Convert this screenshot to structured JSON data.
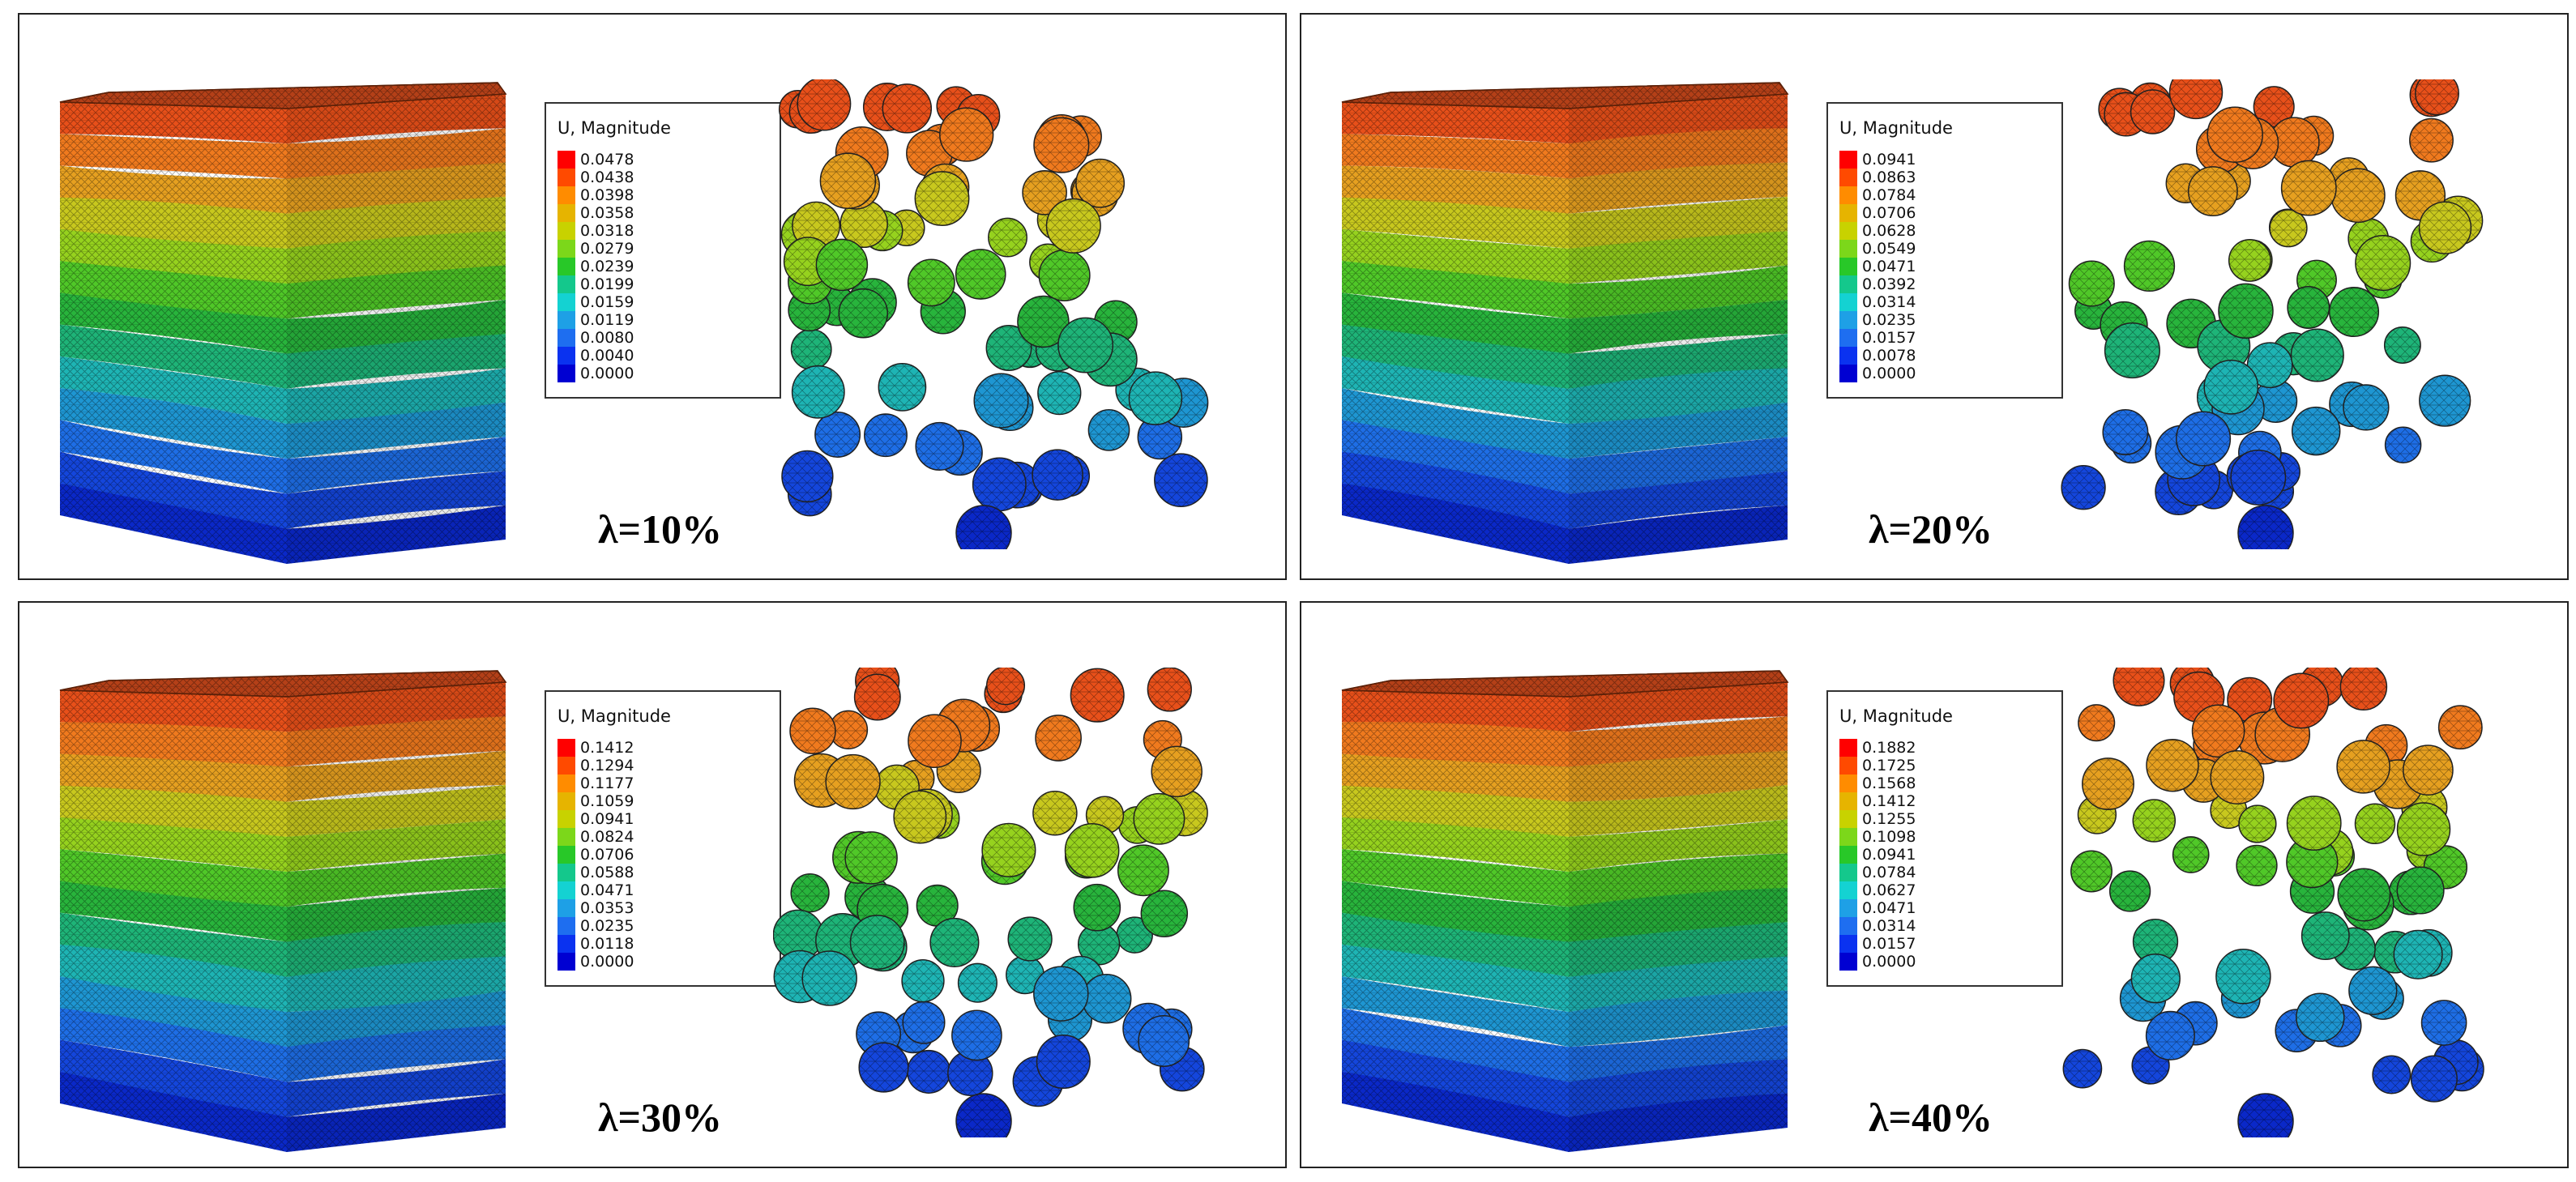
{
  "legend_title": "U, Magnitude",
  "legend_colors": [
    "#ff0000",
    "#ff4a00",
    "#ff8c00",
    "#e6b400",
    "#c8d200",
    "#7cd71a",
    "#28c828",
    "#14c88c",
    "#14d2d2",
    "#1ea0e6",
    "#1e6ef0",
    "#0a32f0",
    "#0000d2"
  ],
  "panels": [
    {
      "caption": "λ=10%",
      "legend_values": [
        "0.0478",
        "0.0438",
        "0.0398",
        "0.0358",
        "0.0318",
        "0.0279",
        "0.0239",
        "0.0199",
        "0.0159",
        "0.0119",
        "0.0080",
        "0.0040",
        "0.0000"
      ]
    },
    {
      "caption": "λ=20%",
      "legend_values": [
        "0.0941",
        "0.0863",
        "0.0784",
        "0.0706",
        "0.0628",
        "0.0549",
        "0.0471",
        "0.0392",
        "0.0314",
        "0.0235",
        "0.0157",
        "0.0078",
        "0.0000"
      ]
    },
    {
      "caption": "λ=30%",
      "legend_values": [
        "0.1412",
        "0.1294",
        "0.1177",
        "0.1059",
        "0.0941",
        "0.0824",
        "0.0706",
        "0.0588",
        "0.0471",
        "0.0353",
        "0.0235",
        "0.0118",
        "0.0000"
      ]
    },
    {
      "caption": "λ=40%",
      "legend_values": [
        "0.1882",
        "0.1725",
        "0.1568",
        "0.1412",
        "0.1255",
        "0.1098",
        "0.0941",
        "0.0784",
        "0.0627",
        "0.0471",
        "0.0314",
        "0.0157",
        "0.0000"
      ]
    }
  ]
}
